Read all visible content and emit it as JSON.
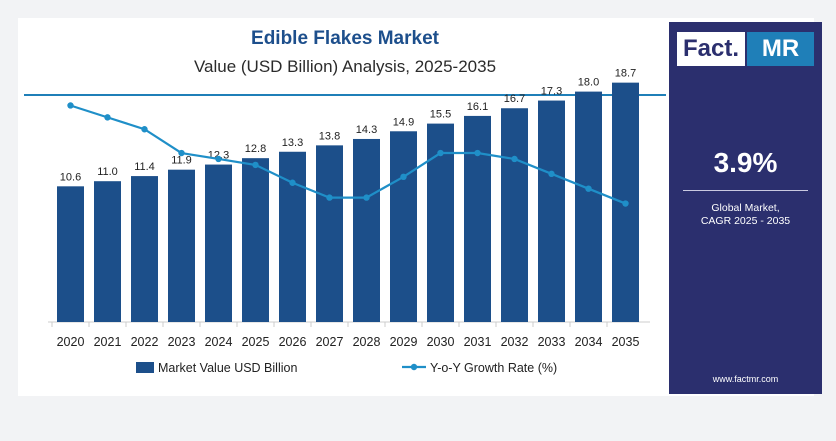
{
  "header": {
    "title": "Edible Flakes Market",
    "subtitle": "Value (USD Billion) Analysis, 2025-2035"
  },
  "sidebar": {
    "logo_left": "Fact.",
    "logo_right": "MR",
    "cagr_value": "3.9%",
    "cagr_label_line1": "Global Market,",
    "cagr_label_line2": "CAGR 2025 - 2035",
    "website": "www.factmr.com"
  },
  "colors": {
    "bar": "#1c4f8a",
    "line": "#1f8fc8",
    "title": "#1d4f8c",
    "sidebar": "#2b2f6e",
    "accent": "#1f7fb8"
  },
  "chart_data": {
    "type": "bar",
    "categories": [
      "2020",
      "2021",
      "2022",
      "2023",
      "2024",
      "2025",
      "2026",
      "2027",
      "2028",
      "2029",
      "2030",
      "2031",
      "2032",
      "2033",
      "2034",
      "2035"
    ],
    "series": [
      {
        "name": "Market Value USD Billion",
        "type": "bar",
        "values": [
          10.6,
          11.0,
          11.4,
          11.9,
          12.3,
          12.8,
          13.3,
          13.8,
          14.3,
          14.9,
          15.5,
          16.1,
          16.7,
          17.3,
          18.0,
          18.7
        ]
      },
      {
        "name": "Y-o-Y Growth Rate (%)",
        "type": "line",
        "values": [
          5.2,
          4.8,
          4.4,
          3.6,
          3.4,
          3.2,
          2.6,
          2.1,
          2.1,
          2.8,
          3.6,
          3.6,
          3.4,
          2.9,
          2.4,
          1.9
        ]
      }
    ],
    "ylim": [
      0,
      20
    ],
    "y2lim": [
      0,
      7
    ],
    "grid": false,
    "legend_position": "bottom"
  }
}
